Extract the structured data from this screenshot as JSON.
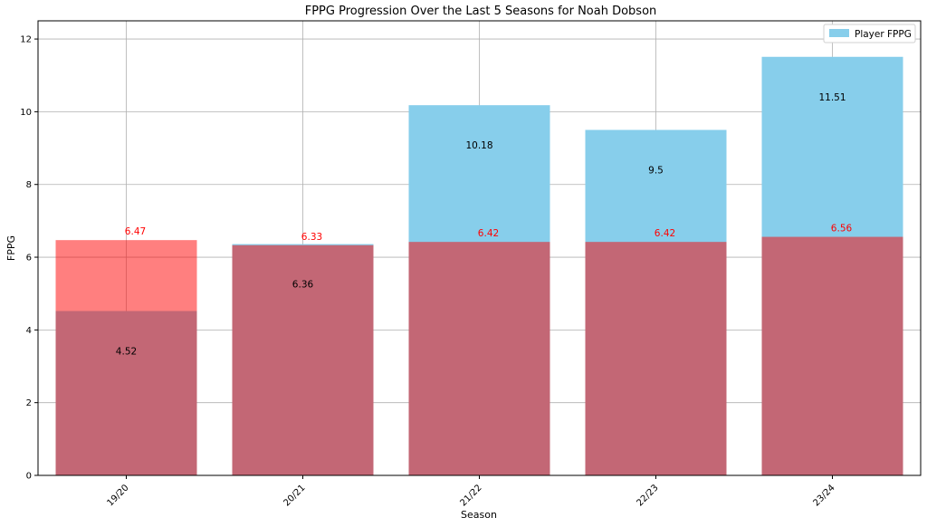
{
  "chart_data": {
    "type": "bar",
    "title": "FPPG Progression Over the Last 5 Seasons for Noah Dobson",
    "xlabel": "Season",
    "ylabel": "FPPG",
    "categories": [
      "19/20",
      "20/21",
      "21/22",
      "22/23",
      "23/24"
    ],
    "ylim": [
      0,
      12.5
    ],
    "yticks": [
      0,
      2,
      4,
      6,
      8,
      10,
      12
    ],
    "grid": true,
    "legend_position": "top-right",
    "series": [
      {
        "name": "Player FPPG",
        "values": [
          4.52,
          6.36,
          10.18,
          9.5,
          11.51
        ],
        "labels": [
          "4.52",
          "6.36",
          "10.18",
          "9.5",
          "11.51"
        ],
        "color": "#87ceeb",
        "label_color": "#000000"
      },
      {
        "name": "",
        "values": [
          6.47,
          6.33,
          6.42,
          6.42,
          6.56
        ],
        "labels": [
          "6.47",
          "6.33",
          "6.42",
          "6.42",
          "6.56"
        ],
        "color": "#ff0000",
        "opacity": 0.5,
        "label_color": "#ff0000"
      }
    ]
  }
}
